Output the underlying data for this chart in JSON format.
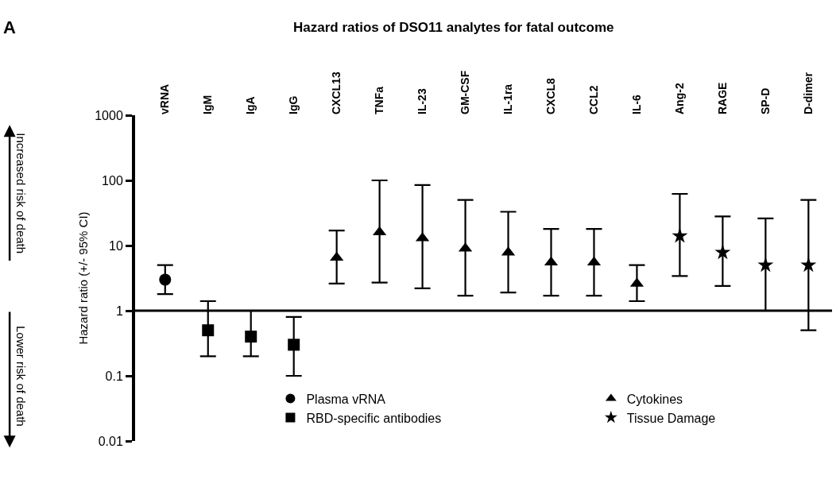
{
  "chart_data": {
    "type": "scatter",
    "title": "Hazard ratios of DSO11 analytes for fatal outcome",
    "ylabel": "Hazard ratio (+/- 95% CI)",
    "annotations": [
      "A",
      "Increased risk of death",
      "Lower risk of death"
    ],
    "categories": [
      "vRNA",
      "IgM",
      "IgA",
      "IgG",
      "CXCL13",
      "TNFa",
      "IL-23",
      "GM-CSF",
      "IL-1ra",
      "CXCL8",
      "CCL2",
      "IL-6",
      "Ang-2",
      "RAGE",
      "SP-D",
      "D-dimer"
    ],
    "series": [
      {
        "name": "Plasma vRNA",
        "color": "#000000",
        "marker": "circle",
        "values": [
          3,
          null,
          null,
          null,
          null,
          null,
          null,
          null,
          null,
          null,
          null,
          null,
          null,
          null,
          null,
          null
        ],
        "errors": [
          [
            1.8,
            5
          ],
          null,
          null,
          null,
          null,
          null,
          null,
          null,
          null,
          null,
          null,
          null,
          null,
          null,
          null,
          null
        ]
      },
      {
        "name": "RBD-specific antibodies",
        "color": "#000000",
        "marker": "square",
        "values": [
          null,
          0.5,
          0.4,
          0.3,
          null,
          null,
          null,
          null,
          null,
          null,
          null,
          null,
          null,
          null,
          null,
          null
        ],
        "errors": [
          null,
          [
            0.2,
            1.4
          ],
          [
            0.2,
            1
          ],
          [
            0.1,
            0.8
          ],
          null,
          null,
          null,
          null,
          null,
          null,
          null,
          null,
          null,
          null,
          null,
          null
        ]
      },
      {
        "name": "Cytokines",
        "color": "#000000",
        "marker": "triangle",
        "values": [
          null,
          null,
          null,
          null,
          6.5,
          16,
          13,
          9,
          7.8,
          5.5,
          5.5,
          2.6,
          null,
          null,
          null,
          null
        ],
        "errors": [
          null,
          null,
          null,
          null,
          [
            2.6,
            17
          ],
          [
            2.7,
            100
          ],
          [
            2.2,
            85
          ],
          [
            1.7,
            50
          ],
          [
            1.9,
            33
          ],
          [
            1.7,
            18
          ],
          [
            1.7,
            18
          ],
          [
            1.4,
            5
          ],
          null,
          null,
          null,
          null
        ]
      },
      {
        "name": "Tissue Damage",
        "color": "#000000",
        "marker": "star",
        "values": [
          null,
          null,
          null,
          null,
          null,
          null,
          null,
          null,
          null,
          null,
          null,
          null,
          14,
          7.8,
          5,
          5
        ],
        "errors": [
          null,
          null,
          null,
          null,
          null,
          null,
          null,
          null,
          null,
          null,
          null,
          null,
          [
            3.4,
            62
          ],
          [
            2.4,
            28
          ],
          [
            1,
            26
          ],
          [
            0.5,
            50
          ]
        ]
      }
    ],
    "log": true,
    "ylim": [
      0.01,
      1000
    ],
    "yticks": [
      0.01,
      0.1,
      1,
      10,
      100,
      1000
    ],
    "ref_lines": [
      {
        "axis": "y",
        "value": 1,
        "color": "#000000"
      }
    ],
    "legend": "bottom"
  }
}
